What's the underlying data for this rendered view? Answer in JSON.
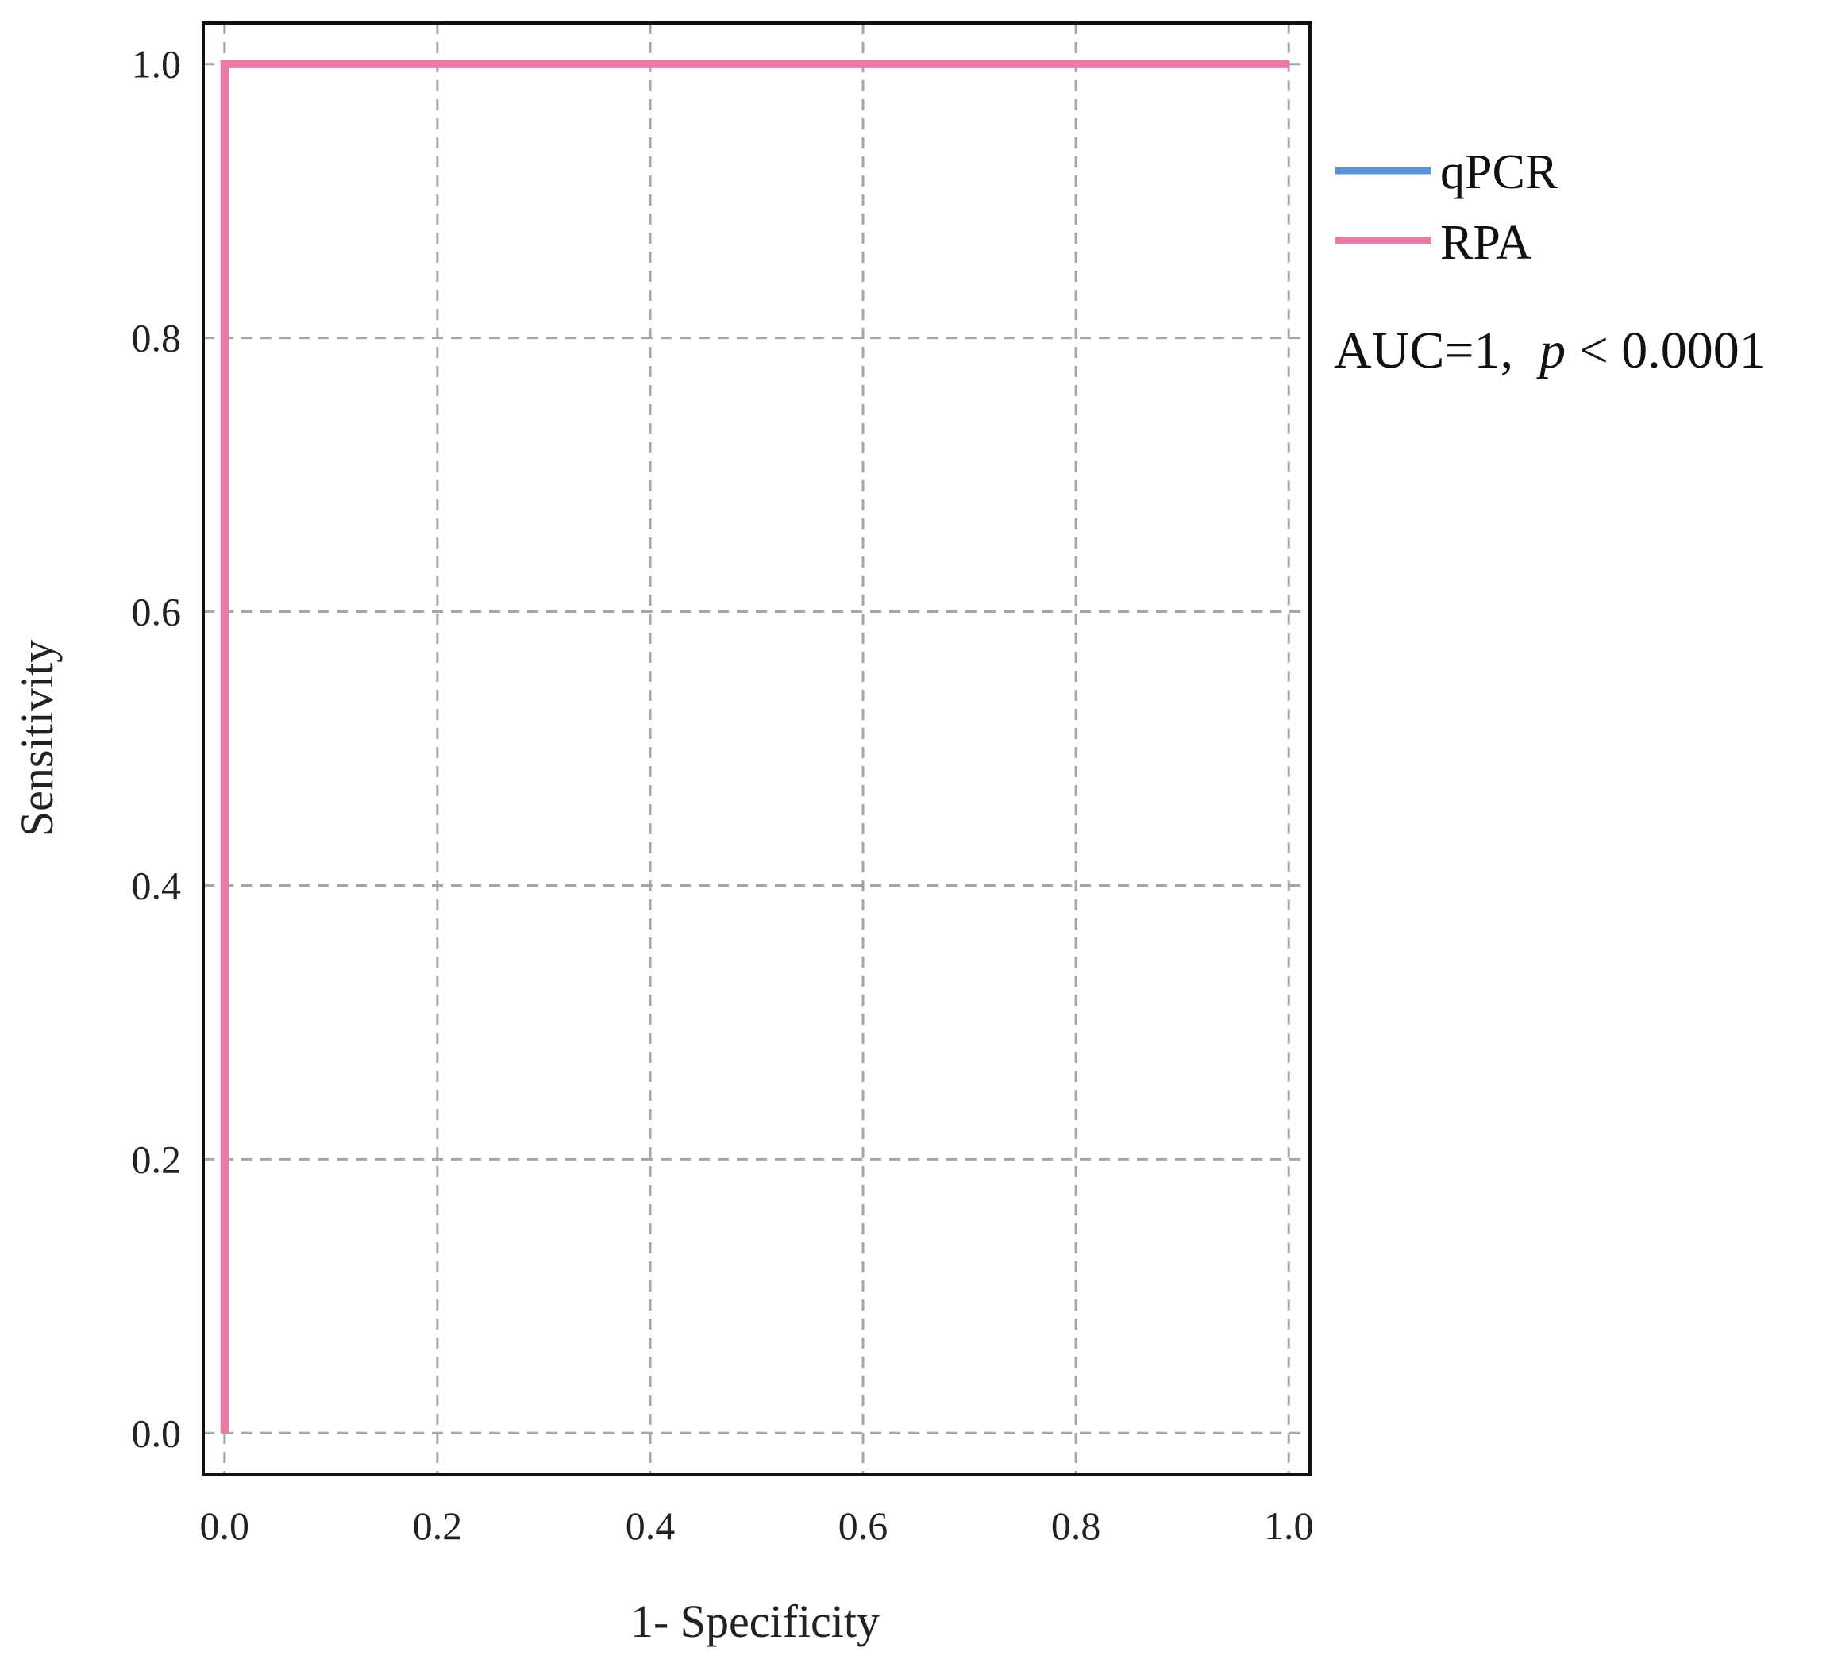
{
  "chart_data": {
    "type": "line",
    "xlabel": "1- Specificity",
    "ylabel": "Sensitivity",
    "xlim": [
      -0.02,
      1.02
    ],
    "ylim": [
      -0.03,
      1.03
    ],
    "x_ticks": [
      "0.0",
      "0.2",
      "0.4",
      "0.6",
      "0.8",
      "1.0"
    ],
    "y_ticks": [
      "0.0",
      "0.2",
      "0.4",
      "0.6",
      "0.8",
      "1.0"
    ],
    "grid": true,
    "legend_position": "right",
    "series": [
      {
        "name": "qPCR",
        "color": "#5b93d3",
        "x": [
          0,
          0,
          1
        ],
        "y": [
          0,
          1,
          1
        ]
      },
      {
        "name": "RPA",
        "color": "#e97ba6",
        "x": [
          0,
          0,
          1
        ],
        "y": [
          0,
          1,
          1
        ]
      }
    ],
    "annotation": {
      "prefix": "AUC=1,  ",
      "p_symbol": "p",
      "suffix": " < 0.0001"
    }
  }
}
